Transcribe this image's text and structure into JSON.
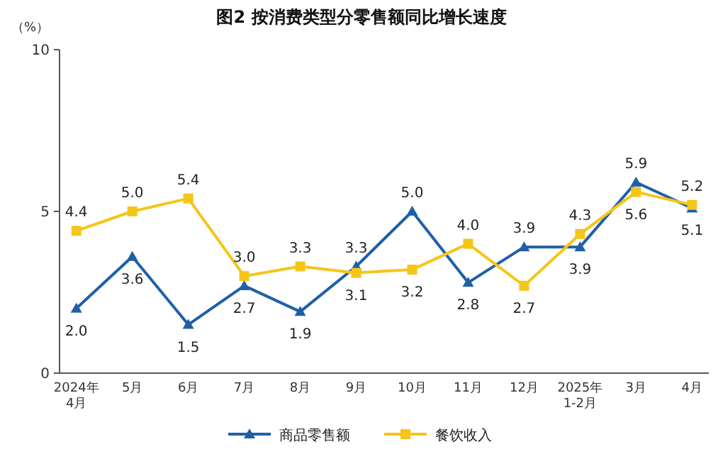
{
  "chart_data": {
    "type": "line",
    "title": "图2  按消费类型分零售额同比增长速度",
    "ylabel": "（%）",
    "categories": [
      "2024年\n4月",
      "5月",
      "6月",
      "7月",
      "8月",
      "9月",
      "10月",
      "11月",
      "12月",
      "2025年\n1-2月",
      "3月",
      "4月"
    ],
    "series": [
      {
        "name": "商品零售额",
        "color": "#1f5fa8",
        "marker": "triangle",
        "values": [
          2.0,
          3.6,
          1.5,
          2.7,
          1.9,
          3.3,
          5.0,
          2.8,
          3.9,
          3.9,
          5.9,
          5.1
        ],
        "value_labels": [
          "2.0",
          "3.6",
          "1.5",
          "2.7",
          "1.9",
          "3.3",
          "5.0",
          "2.8",
          "3.9",
          "3.9",
          "5.9",
          "5.1"
        ]
      },
      {
        "name": "餐饮收入",
        "color": "#f5c518",
        "marker": "square",
        "values": [
          4.4,
          5.0,
          5.4,
          3.0,
          3.3,
          3.1,
          3.2,
          4.0,
          2.7,
          4.3,
          5.6,
          5.2
        ],
        "value_labels": [
          "4.4",
          "5.0",
          "5.4",
          "3.0",
          "3.3",
          "3.1",
          "3.2",
          "4.0",
          "2.7",
          "4.3",
          "5.6",
          "5.2"
        ]
      }
    ],
    "ylim": [
      0,
      10
    ],
    "yticks": [
      0,
      5,
      10
    ],
    "grid": false,
    "legend": "bottom",
    "line_style": "solid"
  }
}
